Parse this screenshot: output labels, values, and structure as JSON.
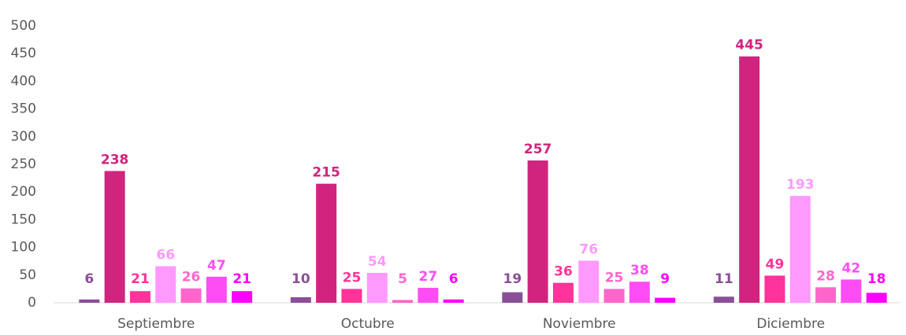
{
  "chart_data": {
    "type": "bar",
    "categories": [
      "Septiembre",
      "Octubre",
      "Noviembre",
      "Diciembre"
    ],
    "series": [
      {
        "color": "#8b4f97",
        "values": [
          6,
          10,
          19,
          11
        ]
      },
      {
        "color": "#d0247f",
        "values": [
          238,
          215,
          257,
          445
        ]
      },
      {
        "color": "#ff3399",
        "values": [
          21,
          25,
          36,
          49
        ]
      },
      {
        "color": "#ff99ff",
        "values": [
          66,
          54,
          76,
          193
        ]
      },
      {
        "color": "#ff66cc",
        "values": [
          26,
          5,
          25,
          28
        ]
      },
      {
        "color": "#ff4df5",
        "values": [
          47,
          27,
          38,
          42
        ]
      },
      {
        "color": "#ff00ff",
        "values": [
          21,
          6,
          9,
          18
        ]
      }
    ],
    "ylim": [
      0,
      500
    ],
    "yticks": [
      0,
      50,
      100,
      150,
      200,
      250,
      300,
      350,
      400,
      450,
      500
    ],
    "grid": false,
    "data_labels": true
  }
}
